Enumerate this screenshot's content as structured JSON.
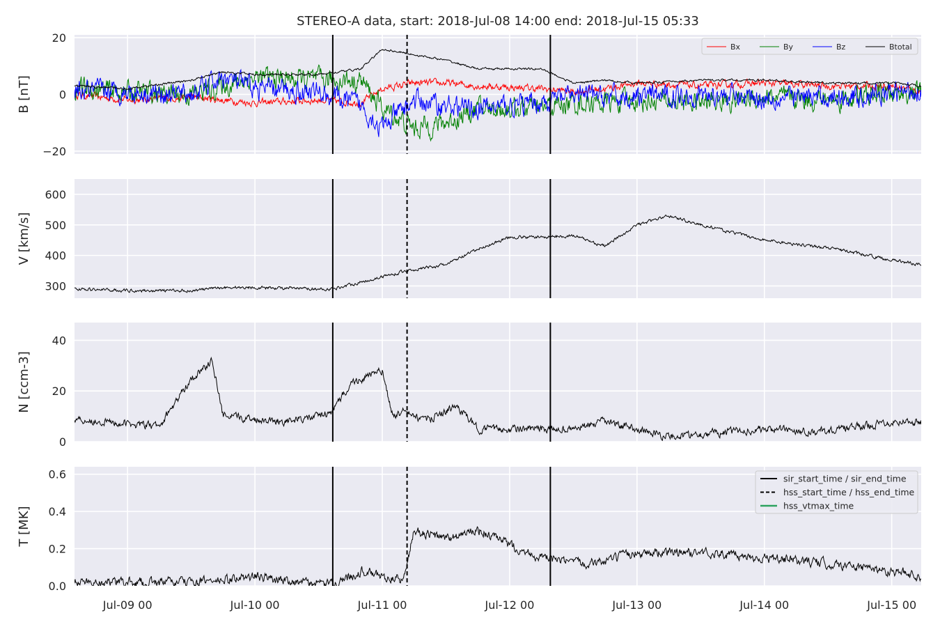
{
  "chart_data": {
    "title": "STEREO-A data, start: 2018-Jul-08 14:00  end: 2018-Jul-15 05:33",
    "type": "line",
    "time_range": [
      "2018-07-08T14:00",
      "2018-07-15T05:33"
    ],
    "x_ticks": [
      {
        "t": "2018-07-09T00:00",
        "label": "Jul-09 00"
      },
      {
        "t": "2018-07-10T00:00",
        "label": "Jul-10 00"
      },
      {
        "t": "2018-07-11T00:00",
        "label": "Jul-11 00"
      },
      {
        "t": "2018-07-12T00:00",
        "label": "Jul-12 00"
      },
      {
        "t": "2018-07-13T00:00",
        "label": "Jul-13 00"
      },
      {
        "t": "2018-07-14T00:00",
        "label": "Jul-14 00"
      },
      {
        "t": "2018-07-15T00:00",
        "label": "Jul-15 00"
      }
    ],
    "markers": {
      "sir_start_time": "2018-07-10T14:40",
      "hss_start_time": "2018-07-11T04:40",
      "sir_end_time": "2018-07-12T07:40"
    },
    "grid": true,
    "colors": {
      "Bx": "#ff0000",
      "By": "#008000",
      "Bz": "#0000ff",
      "Btotal": "#000000",
      "hss_vtmax": "#2ca25f",
      "axes_bg": "#eaeaf2"
    },
    "panels": [
      {
        "ylabel": "B [nT]",
        "ylim": [
          -21,
          21
        ],
        "yticks": [
          {
            "v": -20,
            "label": "−20"
          },
          {
            "v": 0,
            "label": "0"
          },
          {
            "v": 20,
            "label": "20"
          }
        ],
        "legend_loc": "top-right",
        "series": [
          {
            "name": "Bx",
            "color": "#ff0000",
            "noise": 1.0,
            "points": [
              [
                "2018-07-08T14:00",
                0
              ],
              [
                "2018-07-09T00:00",
                -2
              ],
              [
                "2018-07-09T12:00",
                -1
              ],
              [
                "2018-07-09T18:00",
                -2
              ],
              [
                "2018-07-10T00:00",
                -3
              ],
              [
                "2018-07-10T12:00",
                -2
              ],
              [
                "2018-07-10T20:00",
                -3
              ],
              [
                "2018-07-11T00:00",
                2
              ],
              [
                "2018-07-11T06:00",
                4
              ],
              [
                "2018-07-11T12:00",
                4
              ],
              [
                "2018-07-11T18:00",
                3
              ],
              [
                "2018-07-12T06:00",
                2
              ],
              [
                "2018-07-12T12:00",
                1
              ],
              [
                "2018-07-12T18:00",
                2
              ],
              [
                "2018-07-13T00:00",
                4
              ],
              [
                "2018-07-13T12:00",
                3
              ],
              [
                "2018-07-14T00:00",
                4
              ],
              [
                "2018-07-14T12:00",
                3
              ],
              [
                "2018-07-15T00:00",
                3
              ],
              [
                "2018-07-15T05:33",
                1
              ]
            ]
          },
          {
            "name": "By",
            "color": "#008000",
            "noise": 3.0,
            "points": [
              [
                "2018-07-08T14:00",
                2
              ],
              [
                "2018-07-09T00:00",
                1
              ],
              [
                "2018-07-09T12:00",
                0
              ],
              [
                "2018-07-09T18:00",
                3
              ],
              [
                "2018-07-10T00:00",
                6
              ],
              [
                "2018-07-10T12:00",
                5
              ],
              [
                "2018-07-10T20:00",
                5
              ],
              [
                "2018-07-11T00:00",
                -5
              ],
              [
                "2018-07-11T06:00",
                -12
              ],
              [
                "2018-07-11T12:00",
                -10
              ],
              [
                "2018-07-11T18:00",
                -5
              ],
              [
                "2018-07-12T06:00",
                -5
              ],
              [
                "2018-07-12T12:00",
                -3
              ],
              [
                "2018-07-12T18:00",
                -3
              ],
              [
                "2018-07-13T00:00",
                -2
              ],
              [
                "2018-07-13T12:00",
                -3
              ],
              [
                "2018-07-14T00:00",
                -1
              ],
              [
                "2018-07-14T12:00",
                -2
              ],
              [
                "2018-07-15T00:00",
                0
              ],
              [
                "2018-07-15T05:33",
                1
              ]
            ]
          },
          {
            "name": "Bz",
            "color": "#0000ff",
            "noise": 3.0,
            "points": [
              [
                "2018-07-08T14:00",
                1
              ],
              [
                "2018-07-09T00:00",
                1
              ],
              [
                "2018-07-09T12:00",
                0
              ],
              [
                "2018-07-09T18:00",
                6
              ],
              [
                "2018-07-10T00:00",
                2
              ],
              [
                "2018-07-10T12:00",
                1
              ],
              [
                "2018-07-10T20:00",
                -4
              ],
              [
                "2018-07-11T00:00",
                -12
              ],
              [
                "2018-07-11T06:00",
                -2
              ],
              [
                "2018-07-11T12:00",
                -4
              ],
              [
                "2018-07-11T18:00",
                -5
              ],
              [
                "2018-07-12T06:00",
                -3
              ],
              [
                "2018-07-12T12:00",
                0
              ],
              [
                "2018-07-12T18:00",
                -1
              ],
              [
                "2018-07-13T00:00",
                -1
              ],
              [
                "2018-07-13T12:00",
                0
              ],
              [
                "2018-07-14T00:00",
                -1
              ],
              [
                "2018-07-14T12:00",
                -1
              ],
              [
                "2018-07-15T00:00",
                0
              ],
              [
                "2018-07-15T05:33",
                2
              ]
            ]
          },
          {
            "name": "Btotal",
            "color": "#000000",
            "noise": 0.3,
            "points": [
              [
                "2018-07-08T14:00",
                3
              ],
              [
                "2018-07-09T00:00",
                2
              ],
              [
                "2018-07-09T12:00",
                5
              ],
              [
                "2018-07-09T18:00",
                8
              ],
              [
                "2018-07-10T00:00",
                7
              ],
              [
                "2018-07-10T12:00",
                7
              ],
              [
                "2018-07-10T20:00",
                9
              ],
              [
                "2018-07-11T00:00",
                16
              ],
              [
                "2018-07-11T06:00",
                14
              ],
              [
                "2018-07-11T12:00",
                12
              ],
              [
                "2018-07-11T18:00",
                9
              ],
              [
                "2018-07-12T06:00",
                9
              ],
              [
                "2018-07-12T12:00",
                4
              ],
              [
                "2018-07-12T18:00",
                5
              ],
              [
                "2018-07-13T00:00",
                4
              ],
              [
                "2018-07-13T12:00",
                5
              ],
              [
                "2018-07-14T00:00",
                5
              ],
              [
                "2018-07-14T12:00",
                4
              ],
              [
                "2018-07-15T00:00",
                4
              ],
              [
                "2018-07-15T05:33",
                3
              ]
            ]
          }
        ]
      },
      {
        "ylabel": "V [km/s]",
        "ylim": [
          260,
          650
        ],
        "yticks": [
          {
            "v": 300,
            "label": "300"
          },
          {
            "v": 400,
            "label": "400"
          },
          {
            "v": 500,
            "label": "500"
          },
          {
            "v": 600,
            "label": "600"
          }
        ],
        "series": [
          {
            "name": "",
            "color": "#000000",
            "noise": 4,
            "points": [
              [
                "2018-07-08T14:00",
                290
              ],
              [
                "2018-07-09T00:00",
                285
              ],
              [
                "2018-07-09T12:00",
                285
              ],
              [
                "2018-07-09T18:00",
                295
              ],
              [
                "2018-07-10T00:00",
                295
              ],
              [
                "2018-07-10T12:00",
                290
              ],
              [
                "2018-07-10T14:40",
                290
              ],
              [
                "2018-07-11T00:00",
                330
              ],
              [
                "2018-07-11T04:40",
                350
              ],
              [
                "2018-07-11T12:00",
                370
              ],
              [
                "2018-07-11T18:00",
                420
              ],
              [
                "2018-07-12T00:00",
                460
              ],
              [
                "2018-07-12T06:00",
                460
              ],
              [
                "2018-07-12T12:00",
                465
              ],
              [
                "2018-07-12T18:00",
                430
              ],
              [
                "2018-07-13T00:00",
                500
              ],
              [
                "2018-07-13T06:00",
                530
              ],
              [
                "2018-07-13T12:00",
                500
              ],
              [
                "2018-07-14T00:00",
                450
              ],
              [
                "2018-07-14T12:00",
                425
              ],
              [
                "2018-07-15T00:00",
                385
              ],
              [
                "2018-07-15T05:33",
                370
              ]
            ]
          }
        ]
      },
      {
        "ylabel": "N [ccm-3]",
        "ylim": [
          0,
          47
        ],
        "yticks": [
          {
            "v": 0,
            "label": "0"
          },
          {
            "v": 20,
            "label": "20"
          },
          {
            "v": 40,
            "label": "40"
          }
        ],
        "series": [
          {
            "name": "",
            "color": "#000000",
            "noise": 1.2,
            "points": [
              [
                "2018-07-08T14:00",
                9
              ],
              [
                "2018-07-09T00:00",
                7
              ],
              [
                "2018-07-09T06:00",
                6
              ],
              [
                "2018-07-09T08:00",
                12
              ],
              [
                "2018-07-09T12:00",
                25
              ],
              [
                "2018-07-09T16:00",
                32
              ],
              [
                "2018-07-09T18:00",
                10
              ],
              [
                "2018-07-10T00:00",
                9
              ],
              [
                "2018-07-10T06:00",
                8
              ],
              [
                "2018-07-10T12:00",
                10
              ],
              [
                "2018-07-10T14:40",
                12
              ],
              [
                "2018-07-10T18:00",
                23
              ],
              [
                "2018-07-11T00:00",
                28
              ],
              [
                "2018-07-11T02:00",
                10
              ],
              [
                "2018-07-11T04:00",
                12
              ],
              [
                "2018-07-11T08:00",
                8
              ],
              [
                "2018-07-11T14:00",
                14
              ],
              [
                "2018-07-11T18:00",
                5
              ],
              [
                "2018-07-12T00:00",
                5
              ],
              [
                "2018-07-12T12:00",
                5
              ],
              [
                "2018-07-12T18:00",
                8
              ],
              [
                "2018-07-13T00:00",
                5
              ],
              [
                "2018-07-13T06:00",
                2
              ],
              [
                "2018-07-13T12:00",
                3
              ],
              [
                "2018-07-14T00:00",
                5
              ],
              [
                "2018-07-14T12:00",
                4
              ],
              [
                "2018-07-15T00:00",
                8
              ],
              [
                "2018-07-15T05:33",
                8
              ]
            ]
          }
        ]
      },
      {
        "ylabel": "T [MK]",
        "ylim": [
          0,
          0.64
        ],
        "yticks": [
          {
            "v": 0,
            "label": "0.0"
          },
          {
            "v": 0.2,
            "label": "0.2"
          },
          {
            "v": 0.4,
            "label": "0.4"
          },
          {
            "v": 0.6,
            "label": "0.6"
          }
        ],
        "legend_loc": "top-right",
        "legend": [
          {
            "label": "sir_start_time / sir_end_time",
            "style": "solid"
          },
          {
            "label": "hss_start_time / hss_end_time",
            "style": "dashed"
          },
          {
            "label": "hss_vtmax_time",
            "style": "green"
          }
        ],
        "series": [
          {
            "name": "",
            "color": "#000000",
            "noise": 0.02,
            "points": [
              [
                "2018-07-08T14:00",
                0.02
              ],
              [
                "2018-07-09T00:00",
                0.02
              ],
              [
                "2018-07-09T12:00",
                0.02
              ],
              [
                "2018-07-09T18:00",
                0.03
              ],
              [
                "2018-07-10T00:00",
                0.05
              ],
              [
                "2018-07-10T12:00",
                0.01
              ],
              [
                "2018-07-10T14:40",
                0.01
              ],
              [
                "2018-07-10T20:00",
                0.08
              ],
              [
                "2018-07-11T00:00",
                0.05
              ],
              [
                "2018-07-11T04:00",
                0.03
              ],
              [
                "2018-07-11T06:00",
                0.3
              ],
              [
                "2018-07-11T12:00",
                0.25
              ],
              [
                "2018-07-11T18:00",
                0.3
              ],
              [
                "2018-07-12T00:00",
                0.22
              ],
              [
                "2018-07-12T06:00",
                0.15
              ],
              [
                "2018-07-12T12:00",
                0.12
              ],
              [
                "2018-07-12T18:00",
                0.13
              ],
              [
                "2018-07-13T00:00",
                0.18
              ],
              [
                "2018-07-13T12:00",
                0.18
              ],
              [
                "2018-07-14T00:00",
                0.15
              ],
              [
                "2018-07-14T12:00",
                0.12
              ],
              [
                "2018-07-15T00:00",
                0.08
              ],
              [
                "2018-07-15T05:33",
                0.05
              ]
            ]
          }
        ]
      }
    ]
  }
}
